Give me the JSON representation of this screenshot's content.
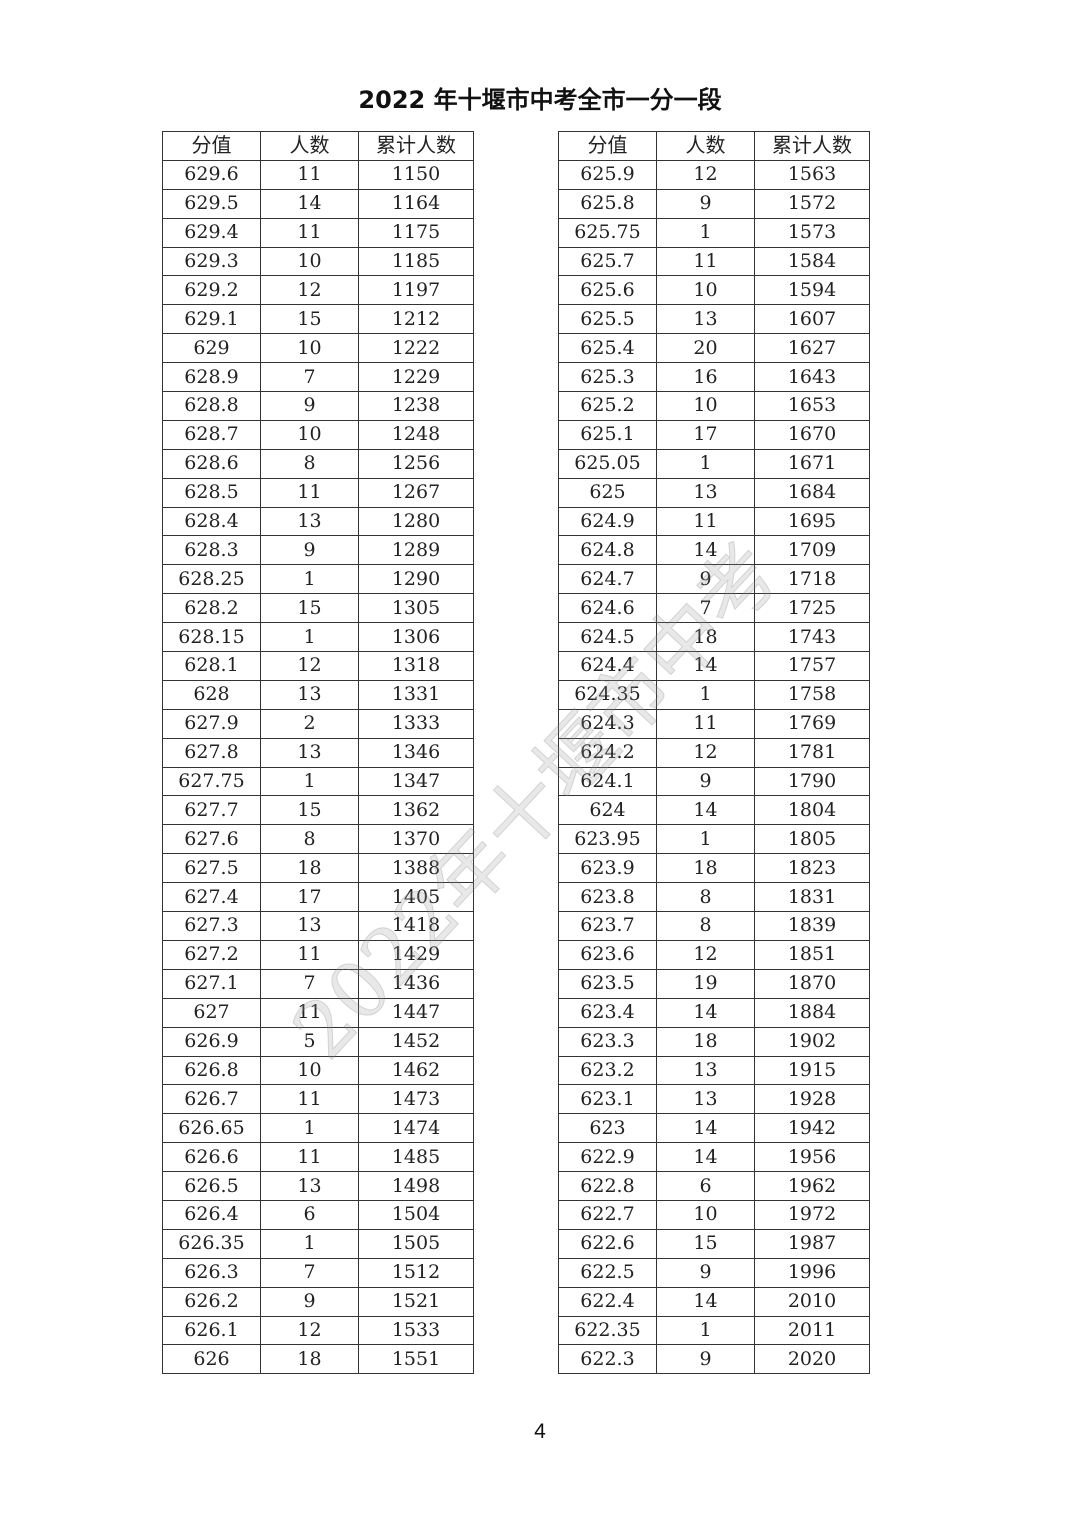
{
  "title": "2022 年十堰市中考全市一分一段",
  "watermark": "2022年十堰市中考",
  "page_number": "4",
  "headers": [
    "分值",
    "人数",
    "累计人数"
  ],
  "left_table": [
    [
      "629.6",
      "11",
      "1150"
    ],
    [
      "629.5",
      "14",
      "1164"
    ],
    [
      "629.4",
      "11",
      "1175"
    ],
    [
      "629.3",
      "10",
      "1185"
    ],
    [
      "629.2",
      "12",
      "1197"
    ],
    [
      "629.1",
      "15",
      "1212"
    ],
    [
      "629",
      "10",
      "1222"
    ],
    [
      "628.9",
      "7",
      "1229"
    ],
    [
      "628.8",
      "9",
      "1238"
    ],
    [
      "628.7",
      "10",
      "1248"
    ],
    [
      "628.6",
      "8",
      "1256"
    ],
    [
      "628.5",
      "11",
      "1267"
    ],
    [
      "628.4",
      "13",
      "1280"
    ],
    [
      "628.3",
      "9",
      "1289"
    ],
    [
      "628.25",
      "1",
      "1290"
    ],
    [
      "628.2",
      "15",
      "1305"
    ],
    [
      "628.15",
      "1",
      "1306"
    ],
    [
      "628.1",
      "12",
      "1318"
    ],
    [
      "628",
      "13",
      "1331"
    ],
    [
      "627.9",
      "2",
      "1333"
    ],
    [
      "627.8",
      "13",
      "1346"
    ],
    [
      "627.75",
      "1",
      "1347"
    ],
    [
      "627.7",
      "15",
      "1362"
    ],
    [
      "627.6",
      "8",
      "1370"
    ],
    [
      "627.5",
      "18",
      "1388"
    ],
    [
      "627.4",
      "17",
      "1405"
    ],
    [
      "627.3",
      "13",
      "1418"
    ],
    [
      "627.2",
      "11",
      "1429"
    ],
    [
      "627.1",
      "7",
      "1436"
    ],
    [
      "627",
      "11",
      "1447"
    ],
    [
      "626.9",
      "5",
      "1452"
    ],
    [
      "626.8",
      "10",
      "1462"
    ],
    [
      "626.7",
      "11",
      "1473"
    ],
    [
      "626.65",
      "1",
      "1474"
    ],
    [
      "626.6",
      "11",
      "1485"
    ],
    [
      "626.5",
      "13",
      "1498"
    ],
    [
      "626.4",
      "6",
      "1504"
    ],
    [
      "626.35",
      "1",
      "1505"
    ],
    [
      "626.3",
      "7",
      "1512"
    ],
    [
      "626.2",
      "9",
      "1521"
    ],
    [
      "626.1",
      "12",
      "1533"
    ],
    [
      "626",
      "18",
      "1551"
    ]
  ],
  "right_table": [
    [
      "625.9",
      "12",
      "1563"
    ],
    [
      "625.8",
      "9",
      "1572"
    ],
    [
      "625.75",
      "1",
      "1573"
    ],
    [
      "625.7",
      "11",
      "1584"
    ],
    [
      "625.6",
      "10",
      "1594"
    ],
    [
      "625.5",
      "13",
      "1607"
    ],
    [
      "625.4",
      "20",
      "1627"
    ],
    [
      "625.3",
      "16",
      "1643"
    ],
    [
      "625.2",
      "10",
      "1653"
    ],
    [
      "625.1",
      "17",
      "1670"
    ],
    [
      "625.05",
      "1",
      "1671"
    ],
    [
      "625",
      "13",
      "1684"
    ],
    [
      "624.9",
      "11",
      "1695"
    ],
    [
      "624.8",
      "14",
      "1709"
    ],
    [
      "624.7",
      "9",
      "1718"
    ],
    [
      "624.6",
      "7",
      "1725"
    ],
    [
      "624.5",
      "18",
      "1743"
    ],
    [
      "624.4",
      "14",
      "1757"
    ],
    [
      "624.35",
      "1",
      "1758"
    ],
    [
      "624.3",
      "11",
      "1769"
    ],
    [
      "624.2",
      "12",
      "1781"
    ],
    [
      "624.1",
      "9",
      "1790"
    ],
    [
      "624",
      "14",
      "1804"
    ],
    [
      "623.95",
      "1",
      "1805"
    ],
    [
      "623.9",
      "18",
      "1823"
    ],
    [
      "623.8",
      "8",
      "1831"
    ],
    [
      "623.7",
      "8",
      "1839"
    ],
    [
      "623.6",
      "12",
      "1851"
    ],
    [
      "623.5",
      "19",
      "1870"
    ],
    [
      "623.4",
      "14",
      "1884"
    ],
    [
      "623.3",
      "18",
      "1902"
    ],
    [
      "623.2",
      "13",
      "1915"
    ],
    [
      "623.1",
      "13",
      "1928"
    ],
    [
      "623",
      "14",
      "1942"
    ],
    [
      "622.9",
      "14",
      "1956"
    ],
    [
      "622.8",
      "6",
      "1962"
    ],
    [
      "622.7",
      "10",
      "1972"
    ],
    [
      "622.6",
      "15",
      "1987"
    ],
    [
      "622.5",
      "9",
      "1996"
    ],
    [
      "622.4",
      "14",
      "2010"
    ],
    [
      "622.35",
      "1",
      "2011"
    ],
    [
      "622.3",
      "9",
      "2020"
    ]
  ]
}
